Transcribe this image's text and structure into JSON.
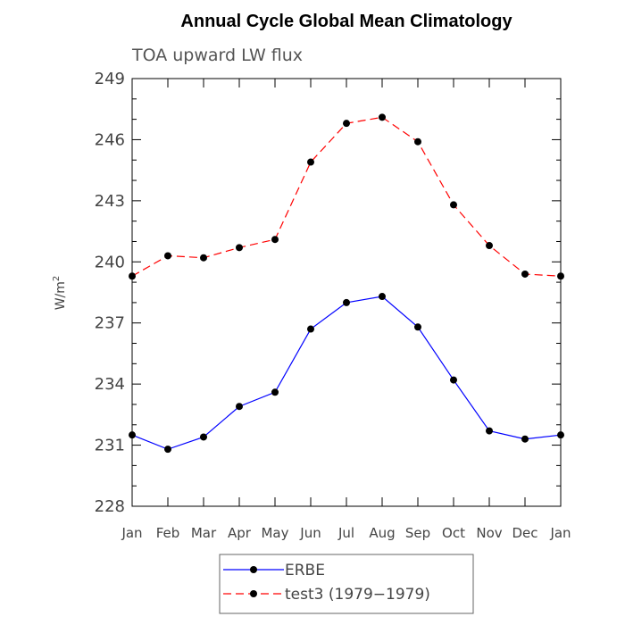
{
  "chart_data": {
    "type": "line",
    "title": "Annual Cycle Global Mean Climatology",
    "subtitle": "TOA upward LW flux",
    "ylabel": "W/m",
    "ylabel_sup": "2",
    "xlabel": "",
    "categories": [
      "Jan",
      "Feb",
      "Mar",
      "Apr",
      "May",
      "Jun",
      "Jul",
      "Aug",
      "Sep",
      "Oct",
      "Nov",
      "Dec",
      "Jan"
    ],
    "ylim": [
      228,
      249
    ],
    "yticks": [
      228,
      231,
      234,
      237,
      240,
      243,
      246,
      249
    ],
    "grid": false,
    "legend_position": "bottom",
    "series": [
      {
        "name": "ERBE",
        "color": "#0000ff",
        "dash": "solid",
        "values": [
          231.5,
          230.8,
          231.4,
          232.9,
          233.6,
          236.7,
          238.0,
          238.3,
          236.8,
          234.2,
          231.7,
          231.3,
          231.5
        ]
      },
      {
        "name": "test3 (1979−1979)",
        "color": "#ff0000",
        "dash": "dashed",
        "values": [
          239.3,
          240.3,
          240.2,
          240.7,
          241.1,
          244.9,
          246.8,
          247.1,
          245.9,
          242.8,
          240.8,
          239.4,
          239.3
        ]
      }
    ]
  }
}
